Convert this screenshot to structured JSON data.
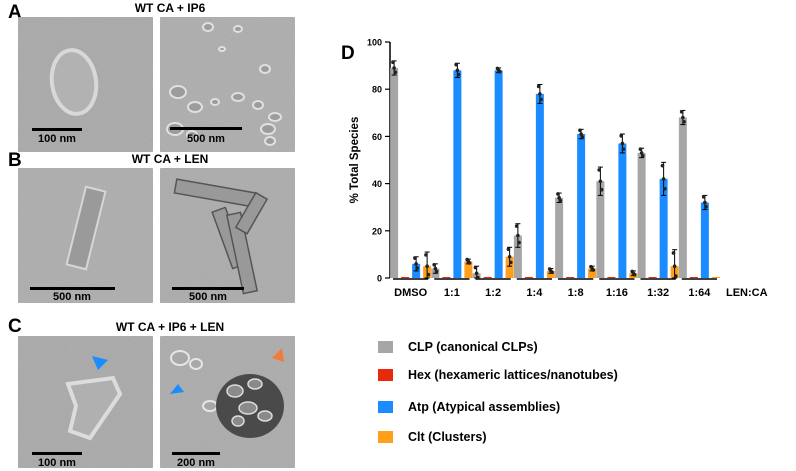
{
  "panels": {
    "A": {
      "label": "A",
      "title": "WT CA + IP6",
      "scale_left": "100 nm",
      "scale_right": "500 nm"
    },
    "B": {
      "label": "B",
      "title": "WT CA + LEN",
      "scale_left": "500 nm",
      "scale_right": "500 nm"
    },
    "C": {
      "label": "C",
      "title": "WT CA + IP6 + LEN",
      "scale_left": "100 nm",
      "scale_right": "200 nm"
    },
    "D": {
      "label": "D"
    }
  },
  "colors": {
    "CLP": "#a6a6a6",
    "Hex": "#e8290b",
    "Atp": "#1a8cff",
    "Clt": "#ff9f1c"
  },
  "chart_data": {
    "type": "bar",
    "ylabel": "% Total Species",
    "xlabel": "LEN:CA",
    "ylim": [
      0,
      100
    ],
    "yticks": [
      0,
      20,
      40,
      60,
      80,
      100
    ],
    "categories": [
      "DMSO",
      "1:1",
      "1:2",
      "1:4",
      "1:8",
      "1:16",
      "1:32",
      "1:64"
    ],
    "series": [
      {
        "key": "CLP",
        "values": [
          89,
          4,
          2,
          18,
          34,
          41,
          53,
          68
        ],
        "errors": [
          3,
          2,
          3,
          5,
          2,
          6,
          2,
          3
        ]
      },
      {
        "key": "Hex",
        "values": [
          0,
          0,
          0,
          0,
          0,
          0,
          0,
          0
        ],
        "errors": [
          0,
          0,
          0,
          0,
          0,
          0,
          0,
          0
        ]
      },
      {
        "key": "Atp",
        "values": [
          6,
          88,
          88,
          78,
          61,
          57,
          42,
          32
        ],
        "errors": [
          3,
          3,
          1,
          4,
          2,
          4,
          7,
          3
        ]
      },
      {
        "key": "Clt",
        "values": [
          5,
          7,
          9,
          3,
          4,
          2,
          5,
          0
        ],
        "errors": [
          6,
          1,
          4,
          1,
          1,
          1,
          7,
          0
        ]
      }
    ]
  },
  "legend": [
    {
      "key": "CLP",
      "label": "CLP (canonical CLPs)"
    },
    {
      "key": "Hex",
      "label": "Hex (hexameric lattices/nanotubes)"
    },
    {
      "key": "Atp",
      "label": "Atp (Atypical assemblies)"
    },
    {
      "key": "Clt",
      "label": "Clt (Clusters)"
    }
  ]
}
